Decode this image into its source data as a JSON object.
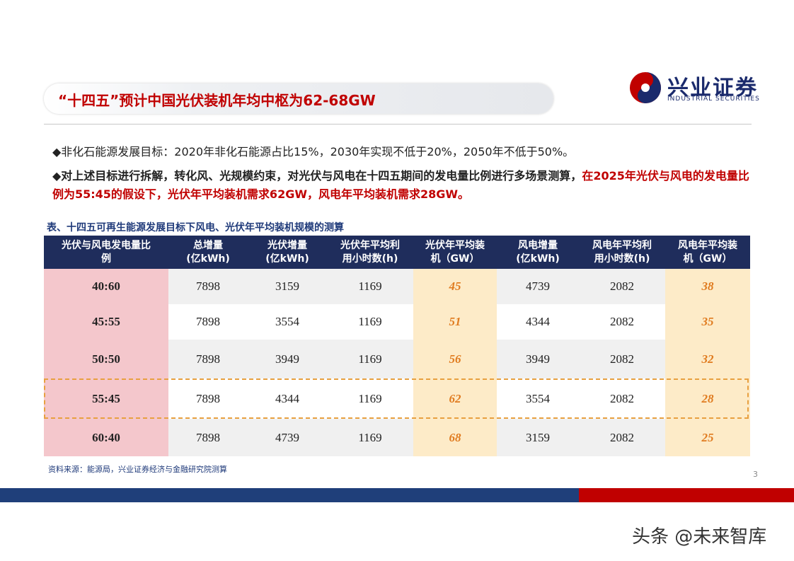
{
  "header": {
    "title": "“十四五”预计中国光伏装机年均中枢为62-68GW",
    "logo_name": "兴业证券",
    "logo_english": "INDUSTRIAL SECURITIES"
  },
  "bullets": [
    {
      "segments": [
        {
          "text": "◆非化石能源发展目标：2020年非化石能源占比15%，2030年实现不低于20%，2050年不低于50%。",
          "color": "#222222"
        }
      ]
    },
    {
      "segments": [
        {
          "text": "◆对上述目标进行拆解，转化风、光规模约束，对光伏与风电在十四五期间的发电量比例进行多场景测算，",
          "color": "#222222"
        },
        {
          "text": "在2025年光伏与风电的发电量比例为55:45的假设下，光伏年平均装机需求62GW，风电年平均装机需求28GW。",
          "color": "#c00000"
        }
      ]
    }
  ],
  "table": {
    "caption": "表、十四五可再生能源发展目标下风电、光伏年平均装机规模的测算",
    "headers": [
      "光伏与风电发电量比\n例",
      "总增量\n(亿kWh)",
      "光伏增量\n(亿kWh)",
      "光伏年平均利\n用小时数(h)",
      "光伏年平均装\n机（GW）",
      "风电增量\n(亿kWh)",
      "风电年平均利\n用小时数(h)",
      "风电年平均装\n机（GW）"
    ],
    "rows": [
      [
        "40:60",
        7898,
        3159,
        1169,
        45,
        4739,
        2082,
        38
      ],
      [
        "45:55",
        7898,
        3554,
        1169,
        51,
        4344,
        2082,
        35
      ],
      [
        "50:50",
        7898,
        3949,
        1169,
        56,
        3949,
        2082,
        32
      ],
      [
        "55:45",
        7898,
        4344,
        1169,
        62,
        3554,
        2082,
        28
      ],
      [
        "60:40",
        7898,
        4739,
        1169,
        68,
        3159,
        2082,
        25
      ]
    ],
    "highlight_row": 3,
    "source": "资料来源：能源局，兴业证券经济与金融研究院测算"
  },
  "page_number": "3",
  "watermark": "头条 @未来智库"
}
